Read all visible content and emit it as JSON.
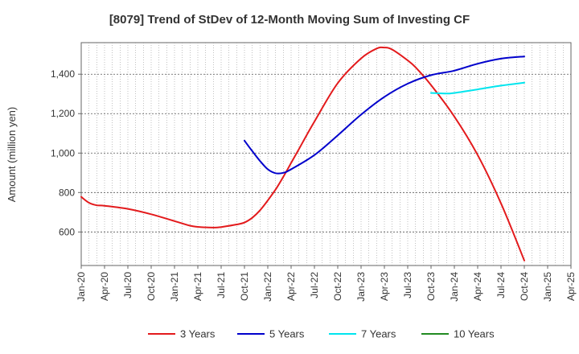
{
  "chart_data": {
    "type": "line",
    "title": "[8079]  Trend of StDev of 12-Month Moving Sum of Investing CF",
    "ylabel": "Amount (million yen)",
    "xlabel": "",
    "ylim": [
      430,
      1560
    ],
    "y_ticks": [
      600,
      800,
      1000,
      1200,
      1400
    ],
    "y_tick_labels": [
      "600",
      "800",
      "1,000",
      "1,200",
      "1,400"
    ],
    "x_start": "Jan-20",
    "x_tick_labels": [
      "Jan-20",
      "Apr-20",
      "Jul-20",
      "Oct-20",
      "Jan-21",
      "Apr-21",
      "Jul-21",
      "Oct-21",
      "Jan-22",
      "Apr-22",
      "Jul-22",
      "Oct-22",
      "Jan-23",
      "Apr-23",
      "Jul-23",
      "Oct-23",
      "Jan-24",
      "Apr-24",
      "Jul-24",
      "Oct-24",
      "Jan-25",
      "Apr-25"
    ],
    "grid": true,
    "legend_position": "bottom",
    "series": [
      {
        "name": "3 Years",
        "color": "#e31a1c",
        "x": [
          "Jan-20",
          "Feb-20",
          "Mar-20",
          "Apr-20",
          "Jul-20",
          "Oct-20",
          "Jan-21",
          "Mar-21",
          "Apr-21",
          "Jun-21",
          "Jul-21",
          "Sep-21",
          "Oct-21",
          "Nov-21",
          "Dec-21",
          "Jan-22",
          "Feb-22",
          "Mar-22",
          "Apr-22",
          "May-22",
          "Jul-22",
          "Oct-22",
          "Jan-23",
          "Mar-23",
          "Apr-23",
          "May-23",
          "Jul-23",
          "Aug-23",
          "Oct-23",
          "Jan-24",
          "Apr-24",
          "Jul-24",
          "Oct-24"
        ],
        "y": [
          778,
          748,
          735,
          733,
          717,
          690,
          655,
          632,
          626,
          622,
          625,
          638,
          648,
          672,
          710,
          760,
          815,
          880,
          950,
          1020,
          1160,
          1355,
          1480,
          1530,
          1535,
          1525,
          1470,
          1435,
          1345,
          1185,
          990,
          745,
          455
        ]
      },
      {
        "name": "5 Years",
        "color": "#0000cc",
        "x": [
          "Oct-21",
          "Nov-21",
          "Dec-21",
          "Jan-22",
          "Feb-22",
          "Mar-22",
          "Apr-22",
          "Jul-22",
          "Oct-22",
          "Jan-23",
          "Apr-23",
          "Jul-23",
          "Oct-23",
          "Jan-24",
          "Apr-24",
          "Jul-24",
          "Oct-24"
        ],
        "y": [
          1063,
          1010,
          960,
          918,
          898,
          900,
          918,
          990,
          1090,
          1195,
          1285,
          1352,
          1395,
          1418,
          1453,
          1479,
          1490
        ]
      },
      {
        "name": "7 Years",
        "color": "#00e5ee",
        "x": [
          "Oct-23",
          "Dec-23",
          "Jan-24",
          "Apr-24",
          "Jul-24",
          "Oct-24"
        ],
        "y": [
          1305,
          1302,
          1305,
          1323,
          1342,
          1357
        ]
      },
      {
        "name": "10 Years",
        "color": "#228b22",
        "x": [],
        "y": []
      }
    ]
  }
}
